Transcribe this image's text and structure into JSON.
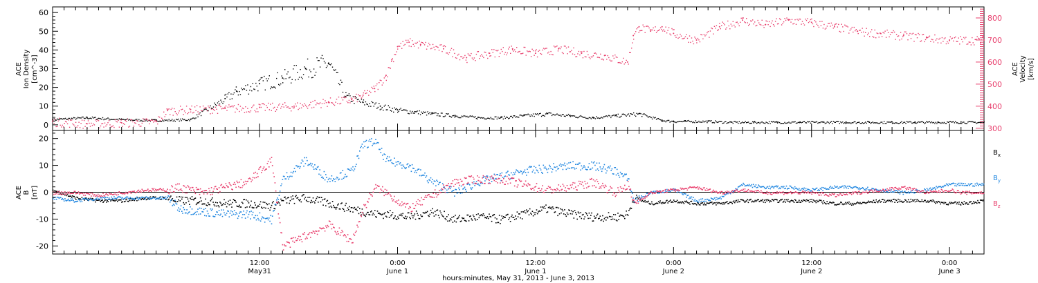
{
  "chart_data": [
    {
      "type": "scatter",
      "panel": "top",
      "x_unit": "hours since May 30 18:00 UT",
      "xlim": [
        0,
        81
      ],
      "left_axis": {
        "label_lines": [
          "ACE",
          "Ion Density",
          "[cm^-3]"
        ],
        "ylim": [
          -3,
          63
        ],
        "ticks": [
          0,
          10,
          20,
          30,
          40,
          50,
          60
        ]
      },
      "right_axis": {
        "label_lines": [
          "ACE",
          "Velocity",
          "[km/s]"
        ],
        "ylim": [
          290,
          850
        ],
        "ticks": [
          300,
          400,
          500,
          600,
          700,
          800
        ],
        "color": "#e83e6c"
      },
      "series": [
        {
          "color": "#000000",
          "axis": "left",
          "x": [
            0,
            3,
            6,
            9,
            12,
            15,
            16,
            18,
            20,
            22,
            24,
            25.5,
            27,
            28.5,
            30,
            31.5,
            33,
            35,
            37,
            39,
            41,
            43,
            45,
            47,
            49,
            51,
            53,
            54,
            55,
            57,
            59,
            61,
            63,
            65,
            67,
            69,
            71,
            73,
            75,
            77,
            79,
            81
          ],
          "y": [
            3,
            4,
            3,
            2.5,
            3,
            14,
            18,
            22,
            25,
            30,
            33,
            15,
            12,
            10,
            8,
            7,
            6,
            5,
            4,
            4,
            5,
            6,
            5,
            4,
            5,
            6,
            2.5,
            2,
            2,
            2,
            1.5,
            1.5,
            1.5,
            1.5,
            1.5,
            1.5,
            1.5,
            1.5,
            1.5,
            1.5,
            1.5,
            1.5
          ]
        },
        {
          "color": "#e83e6c",
          "axis": "right",
          "x": [
            0,
            3,
            6,
            9,
            10,
            12,
            15,
            18,
            21,
            24,
            26,
            27,
            28,
            29,
            29.5,
            30,
            31,
            32,
            34,
            36,
            38,
            40,
            42,
            44,
            46,
            48,
            50,
            50.5,
            51,
            52,
            53,
            54,
            56,
            58,
            60,
            62,
            64,
            66,
            68,
            70,
            72,
            74,
            76,
            78,
            81
          ],
          "y": [
            330,
            320,
            325,
            330,
            380,
            385,
            390,
            395,
            400,
            420,
            430,
            450,
            480,
            540,
            610,
            670,
            690,
            680,
            660,
            620,
            640,
            660,
            640,
            660,
            640,
            630,
            600,
            720,
            760,
            740,
            760,
            730,
            700,
            760,
            790,
            770,
            790,
            780,
            760,
            740,
            730,
            720,
            710,
            700,
            700
          ]
        }
      ]
    },
    {
      "type": "line",
      "panel": "bottom",
      "x_unit": "hours since May 30 18:00 UT",
      "xlim": [
        0,
        81
      ],
      "ylabel_lines": [
        "ACE",
        "B",
        "[nT]"
      ],
      "ylim": [
        -23,
        23
      ],
      "ticks": [
        -20,
        -10,
        0,
        10,
        20
      ],
      "legend": [
        "Bx",
        "By",
        "Bz"
      ],
      "legend_placement": "right",
      "series": [
        {
          "name": "Bx",
          "color": "#000000",
          "x": [
            0,
            2,
            4,
            6,
            8,
            10,
            11,
            13,
            15,
            17,
            19,
            20,
            22,
            24,
            26,
            28,
            29,
            31,
            33,
            35,
            37,
            39,
            41,
            43,
            45,
            47,
            49,
            50,
            50.5,
            52,
            54,
            56,
            58,
            60,
            62,
            64,
            66,
            68,
            70,
            72,
            74,
            76,
            78,
            79,
            81
          ],
          "y": [
            1,
            -2,
            -3,
            -3,
            -2,
            -2,
            -3,
            -3,
            -4,
            -4,
            -5,
            -3,
            -2,
            -4,
            -6,
            -8,
            -8,
            -9,
            -7,
            -10,
            -9,
            -10,
            -8,
            -6,
            -8,
            -9,
            -9,
            -8,
            -2,
            -4,
            -3,
            -4,
            -4,
            -3,
            -3,
            -3,
            -3,
            -4,
            -4,
            -3,
            -3,
            -3,
            -4,
            -4,
            -3
          ]
        },
        {
          "name": "By",
          "color": "#1f86e0",
          "x": [
            0,
            2,
            4,
            6,
            8,
            10,
            11,
            13,
            15,
            17,
            19,
            20,
            22,
            24,
            26,
            27,
            28,
            29,
            31,
            33,
            35,
            37,
            39,
            41,
            43,
            45,
            47,
            49,
            50,
            50.5,
            52,
            54,
            56,
            58,
            60,
            62,
            64,
            66,
            68,
            70,
            72,
            74,
            76,
            78,
            79,
            81
          ],
          "y": [
            -2,
            -3,
            -2,
            -2,
            -2,
            -2,
            -6,
            -7,
            -8,
            -8,
            -10,
            5,
            12,
            5,
            8,
            18,
            19,
            12,
            10,
            4,
            0,
            4,
            6,
            8,
            9,
            10,
            10,
            8,
            5,
            -3,
            0,
            1,
            -3,
            -2,
            3,
            2,
            2,
            1,
            2,
            2,
            1,
            0,
            1,
            3,
            3,
            3
          ]
        },
        {
          "name": "Bz",
          "color": "#e83e6c",
          "x": [
            0,
            2,
            4,
            6,
            8,
            10,
            11,
            13,
            15,
            17,
            19,
            20,
            21,
            22,
            24,
            26,
            27,
            28,
            29,
            31,
            33,
            35,
            37,
            39,
            41,
            43,
            45,
            47,
            49,
            50,
            50.5,
            52,
            54,
            56,
            58,
            60,
            62,
            64,
            66,
            68,
            70,
            72,
            74,
            76,
            78,
            79,
            81
          ],
          "y": [
            0,
            0,
            -1,
            0,
            1,
            1,
            2,
            0,
            2,
            4,
            12,
            -20,
            -18,
            -16,
            -12,
            -18,
            -6,
            2,
            0,
            -6,
            -1,
            4,
            5,
            5,
            3,
            1,
            2,
            4,
            0,
            3,
            -4,
            0,
            1,
            2,
            0,
            1,
            0,
            0,
            0,
            -1,
            0,
            1,
            2,
            0,
            1,
            0,
            0
          ]
        }
      ]
    }
  ],
  "x_axis": {
    "ticks": [
      {
        "x": 18,
        "time": "12:00",
        "date": "May31"
      },
      {
        "x": 30,
        "time": "0:00",
        "date": "June 1"
      },
      {
        "x": 42,
        "time": "12:00",
        "date": "June 1"
      },
      {
        "x": 54,
        "time": "0:00",
        "date": "June 2"
      },
      {
        "x": 66,
        "time": "12:00",
        "date": "June 2"
      },
      {
        "x": 78,
        "time": "0:00",
        "date": "June 3"
      }
    ],
    "title": "hours:minutes, May 31, 2013 - June  3, 2013"
  }
}
